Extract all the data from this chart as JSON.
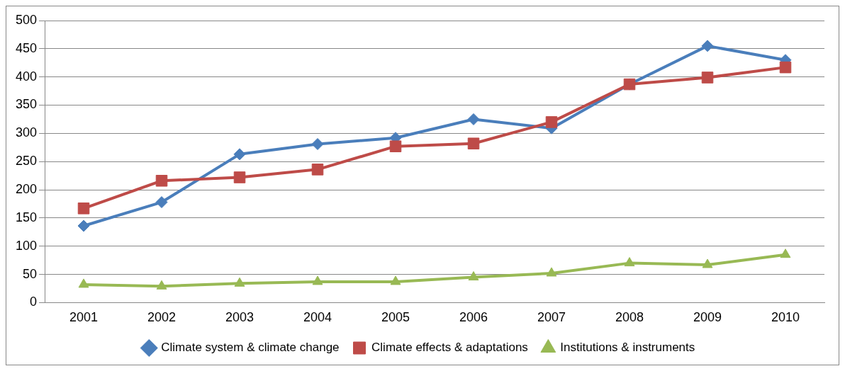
{
  "chart_data": {
    "type": "line",
    "categories": [
      "2001",
      "2002",
      "2003",
      "2004",
      "2005",
      "2006",
      "2007",
      "2008",
      "2009",
      "2010"
    ],
    "series": [
      {
        "name": "Climate system & climate change",
        "color": "#4a7ebb",
        "marker": "diamond",
        "values": [
          136,
          178,
          263,
          281,
          292,
          325,
          309,
          387,
          455,
          430
        ]
      },
      {
        "name": "Climate effects & adaptations",
        "color": "#be4b48",
        "marker": "square",
        "values": [
          167,
          216,
          222,
          236,
          277,
          282,
          320,
          387,
          399,
          417
        ]
      },
      {
        "name": "Institutions & instruments",
        "color": "#98b954",
        "marker": "triangle",
        "values": [
          32,
          29,
          34,
          37,
          37,
          45,
          52,
          70,
          67,
          85
        ]
      }
    ],
    "ylim": [
      0,
      500
    ],
    "yticks": [
      0,
      50,
      100,
      150,
      200,
      250,
      300,
      350,
      400,
      450,
      500
    ],
    "grid": "y",
    "legend": "bottom",
    "line_style": "solid"
  }
}
